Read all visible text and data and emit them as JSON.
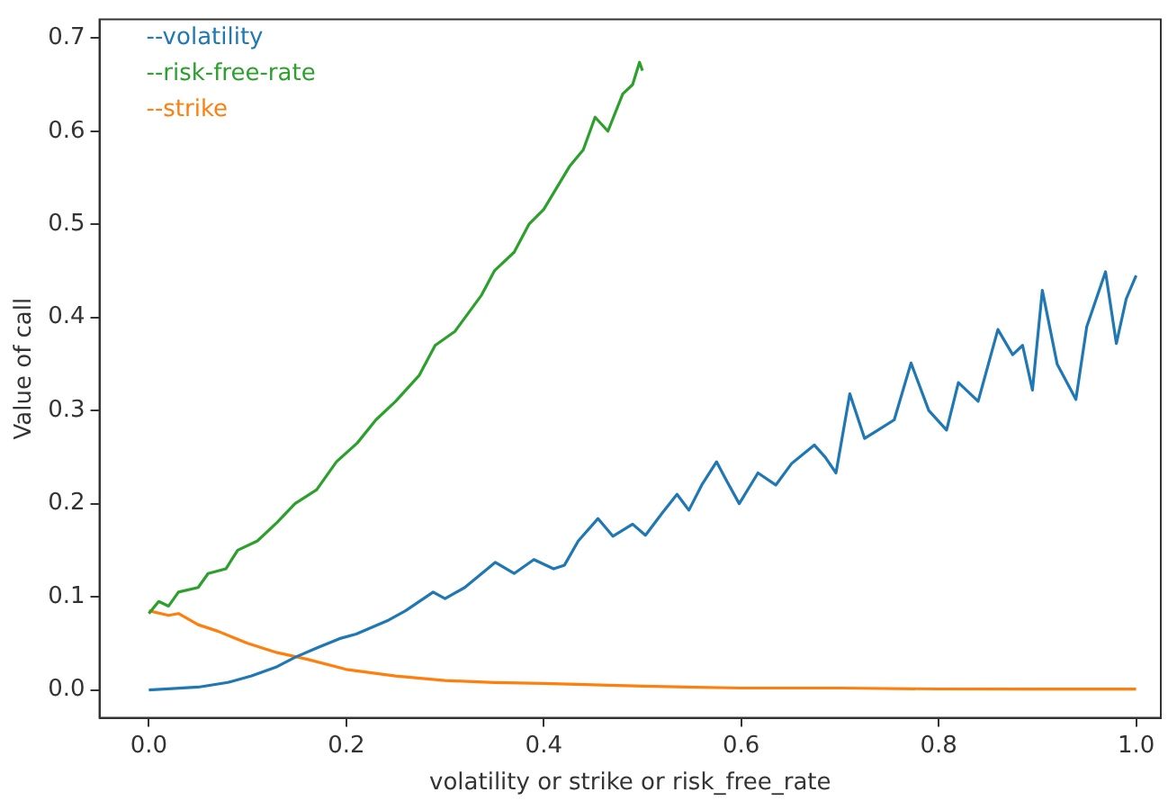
{
  "chart_data": {
    "type": "line",
    "xlabel": "volatility or strike or risk_free_rate",
    "ylabel": "Value of call",
    "xlim": [
      -0.05,
      1.025
    ],
    "ylim": [
      -0.03,
      0.72
    ],
    "xticks": [
      {
        "value": 0,
        "label": "0.0"
      },
      0.2,
      0.4,
      0.6,
      0.8,
      {
        "value": 1,
        "label": "1.0"
      }
    ],
    "yticks": [
      {
        "value": 0,
        "label": "0.0"
      },
      0.1,
      0.2,
      0.3,
      0.4,
      0.5,
      0.6,
      0.7
    ],
    "grid": false,
    "legend": "top left",
    "marker": "none",
    "line_style": "solid",
    "series": [
      {
        "name": "--volatility",
        "color": "#1f77b4",
        "x": [
          0,
          0.05,
          0.08,
          0.104,
          0.13,
          0.148,
          0.17,
          0.193,
          0.21,
          0.243,
          0.26,
          0.288,
          0.3,
          0.32,
          0.351,
          0.37,
          0.39,
          0.41,
          0.421,
          0.435,
          0.455,
          0.47,
          0.49,
          0.503,
          0.52,
          0.535,
          0.547,
          0.56,
          0.575,
          0.585,
          0.598,
          0.617,
          0.635,
          0.651,
          0.674,
          0.685,
          0.696,
          0.71,
          0.725,
          0.74,
          0.755,
          0.772,
          0.79,
          0.808,
          0.82,
          0.84,
          0.86,
          0.875,
          0.885,
          0.895,
          0.905,
          0.92,
          0.939,
          0.95,
          0.969,
          0.98,
          0.99,
          1.0
        ],
        "values": [
          0,
          0.003,
          0.008,
          0.015,
          0.025,
          0.035,
          0.045,
          0.055,
          0.06,
          0.075,
          0.085,
          0.105,
          0.098,
          0.11,
          0.137,
          0.125,
          0.14,
          0.13,
          0.134,
          0.16,
          0.184,
          0.165,
          0.178,
          0.166,
          0.19,
          0.21,
          0.193,
          0.22,
          0.245,
          0.225,
          0.2,
          0.233,
          0.22,
          0.243,
          0.263,
          0.25,
          0.233,
          0.318,
          0.27,
          0.28,
          0.29,
          0.351,
          0.3,
          0.279,
          0.33,
          0.31,
          0.387,
          0.36,
          0.37,
          0.322,
          0.429,
          0.35,
          0.312,
          0.39,
          0.449,
          0.372,
          0.42,
          0.445
        ]
      },
      {
        "name": "--risk-free-rate",
        "color": "#2ca02c",
        "x": [
          0,
          0.01,
          0.02,
          0.03,
          0.05,
          0.06,
          0.078,
          0.09,
          0.11,
          0.13,
          0.148,
          0.17,
          0.19,
          0.211,
          0.23,
          0.25,
          0.274,
          0.29,
          0.31,
          0.337,
          0.35,
          0.37,
          0.385,
          0.4,
          0.426,
          0.44,
          0.452,
          0.465,
          0.48,
          0.49,
          0.497,
          0.5
        ],
        "values": [
          0.082,
          0.095,
          0.09,
          0.105,
          0.11,
          0.125,
          0.13,
          0.15,
          0.16,
          0.18,
          0.2,
          0.215,
          0.245,
          0.265,
          0.29,
          0.31,
          0.338,
          0.37,
          0.385,
          0.424,
          0.45,
          0.47,
          0.5,
          0.516,
          0.562,
          0.58,
          0.615,
          0.6,
          0.64,
          0.65,
          0.674,
          0.665
        ]
      },
      {
        "name": "--strike",
        "color": "#ff7f0e",
        "x": [
          0,
          0.02,
          0.03,
          0.05,
          0.07,
          0.1,
          0.13,
          0.16,
          0.2,
          0.25,
          0.3,
          0.35,
          0.4,
          0.5,
          0.6,
          0.7,
          0.8,
          0.9,
          1.0
        ],
        "values": [
          0.085,
          0.08,
          0.082,
          0.07,
          0.063,
          0.05,
          0.04,
          0.033,
          0.022,
          0.015,
          0.01,
          0.008,
          0.007,
          0.004,
          0.002,
          0.002,
          0.001,
          0.001,
          0.001
        ]
      }
    ]
  }
}
